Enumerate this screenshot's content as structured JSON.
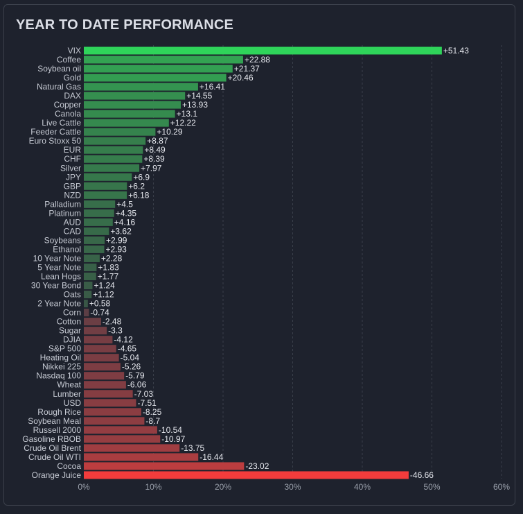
{
  "panel": {
    "title": "YEAR TO DATE PERFORMANCE"
  },
  "colors": {
    "background": "#1e222d",
    "border": "#3c414c",
    "positive_strong": "#2fd45a",
    "positive_weak": "#3a4a44",
    "negative_weak": "#4a3e46",
    "negative_strong": "#f23c3c",
    "grid": "#3a3f4a"
  },
  "chart_data": {
    "type": "bar",
    "orientation": "horizontal",
    "title": "YEAR TO DATE PERFORMANCE",
    "value_axis": "absolute",
    "xlim": [
      0,
      60
    ],
    "x_ticks": [
      0,
      10,
      20,
      30,
      40,
      50,
      60
    ],
    "x_tick_labels": [
      "0%",
      "10%",
      "20%",
      "30%",
      "40%",
      "50%",
      "60%"
    ],
    "grid": true,
    "categories": [
      "VIX",
      "Coffee",
      "Soybean oil",
      "Gold",
      "Natural Gas",
      "DAX",
      "Copper",
      "Canola",
      "Live Cattle",
      "Feeder Cattle",
      "Euro Stoxx 50",
      "EUR",
      "CHF",
      "Silver",
      "JPY",
      "GBP",
      "NZD",
      "Palladium",
      "Platinum",
      "AUD",
      "CAD",
      "Soybeans",
      "Ethanol",
      "10 Year Note",
      "5 Year Note",
      "Lean Hogs",
      "30 Year Bond",
      "Oats",
      "2 Year Note",
      "Corn",
      "Cotton",
      "Sugar",
      "DJIA",
      "S&P 500",
      "Heating Oil",
      "Nikkei 225",
      "Nasdaq 100",
      "Wheat",
      "Lumber",
      "USD",
      "Rough Rice",
      "Soybean Meal",
      "Russell 2000",
      "Gasoline RBOB",
      "Crude Oil Brent",
      "Crude Oil WTI",
      "Cocoa",
      "Orange Juice"
    ],
    "values": [
      51.43,
      22.88,
      21.37,
      20.46,
      16.41,
      14.55,
      13.93,
      13.1,
      12.22,
      10.29,
      8.87,
      8.49,
      8.39,
      7.97,
      6.9,
      6.2,
      6.18,
      4.5,
      4.35,
      4.16,
      3.62,
      2.99,
      2.93,
      2.28,
      1.83,
      1.77,
      1.24,
      1.12,
      0.58,
      -0.74,
      -2.48,
      -3.3,
      -4.12,
      -4.65,
      -5.04,
      -5.26,
      -5.79,
      -6.06,
      -7.03,
      -7.51,
      -8.25,
      -8.7,
      -10.54,
      -10.97,
      -13.75,
      -16.44,
      -23.02,
      -46.66
    ],
    "value_labels": [
      "+51.43",
      "+22.88",
      "+21.37",
      "+20.46",
      "+16.41",
      "+14.55",
      "+13.93",
      "+13.1",
      "+12.22",
      "+10.29",
      "+8.87",
      "+8.49",
      "+8.39",
      "+7.97",
      "+6.9",
      "+6.2",
      "+6.18",
      "+4.5",
      "+4.35",
      "+4.16",
      "+3.62",
      "+2.99",
      "+2.93",
      "+2.28",
      "+1.83",
      "+1.77",
      "+1.24",
      "+1.12",
      "+0.58",
      "-0.74",
      "-2.48",
      "-3.3",
      "-4.12",
      "-4.65",
      "-5.04",
      "-5.26",
      "-5.79",
      "-6.06",
      "-7.03",
      "-7.51",
      "-8.25",
      "-8.7",
      "-10.54",
      "-10.97",
      "-13.75",
      "-16.44",
      "-23.02",
      "-46.66"
    ]
  }
}
